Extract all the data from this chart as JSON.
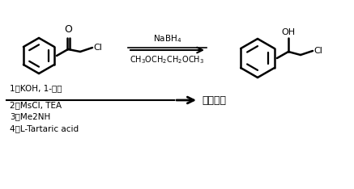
{
  "background_color": "#ffffff",
  "fig_width": 4.37,
  "fig_height": 2.34,
  "dpi": 100,
  "reaction1_reagent_top": "NaBH$_4$",
  "reaction1_reagent_bottom": "CH$_3$OCH$_2$CH$_2$OCH$_3$",
  "product_label": "达泊西汀",
  "step1": "1）KOH, 1-氟萊",
  "step2": "2）MsCl, TEA",
  "step3": "3）Me2NH",
  "step4": "4）L-Tartaric acid",
  "text_color": "#000000",
  "line_color": "#000000",
  "font_size_reagent": 7.5,
  "font_size_steps": 7.5,
  "font_size_product": 9,
  "font_size_atom": 8
}
